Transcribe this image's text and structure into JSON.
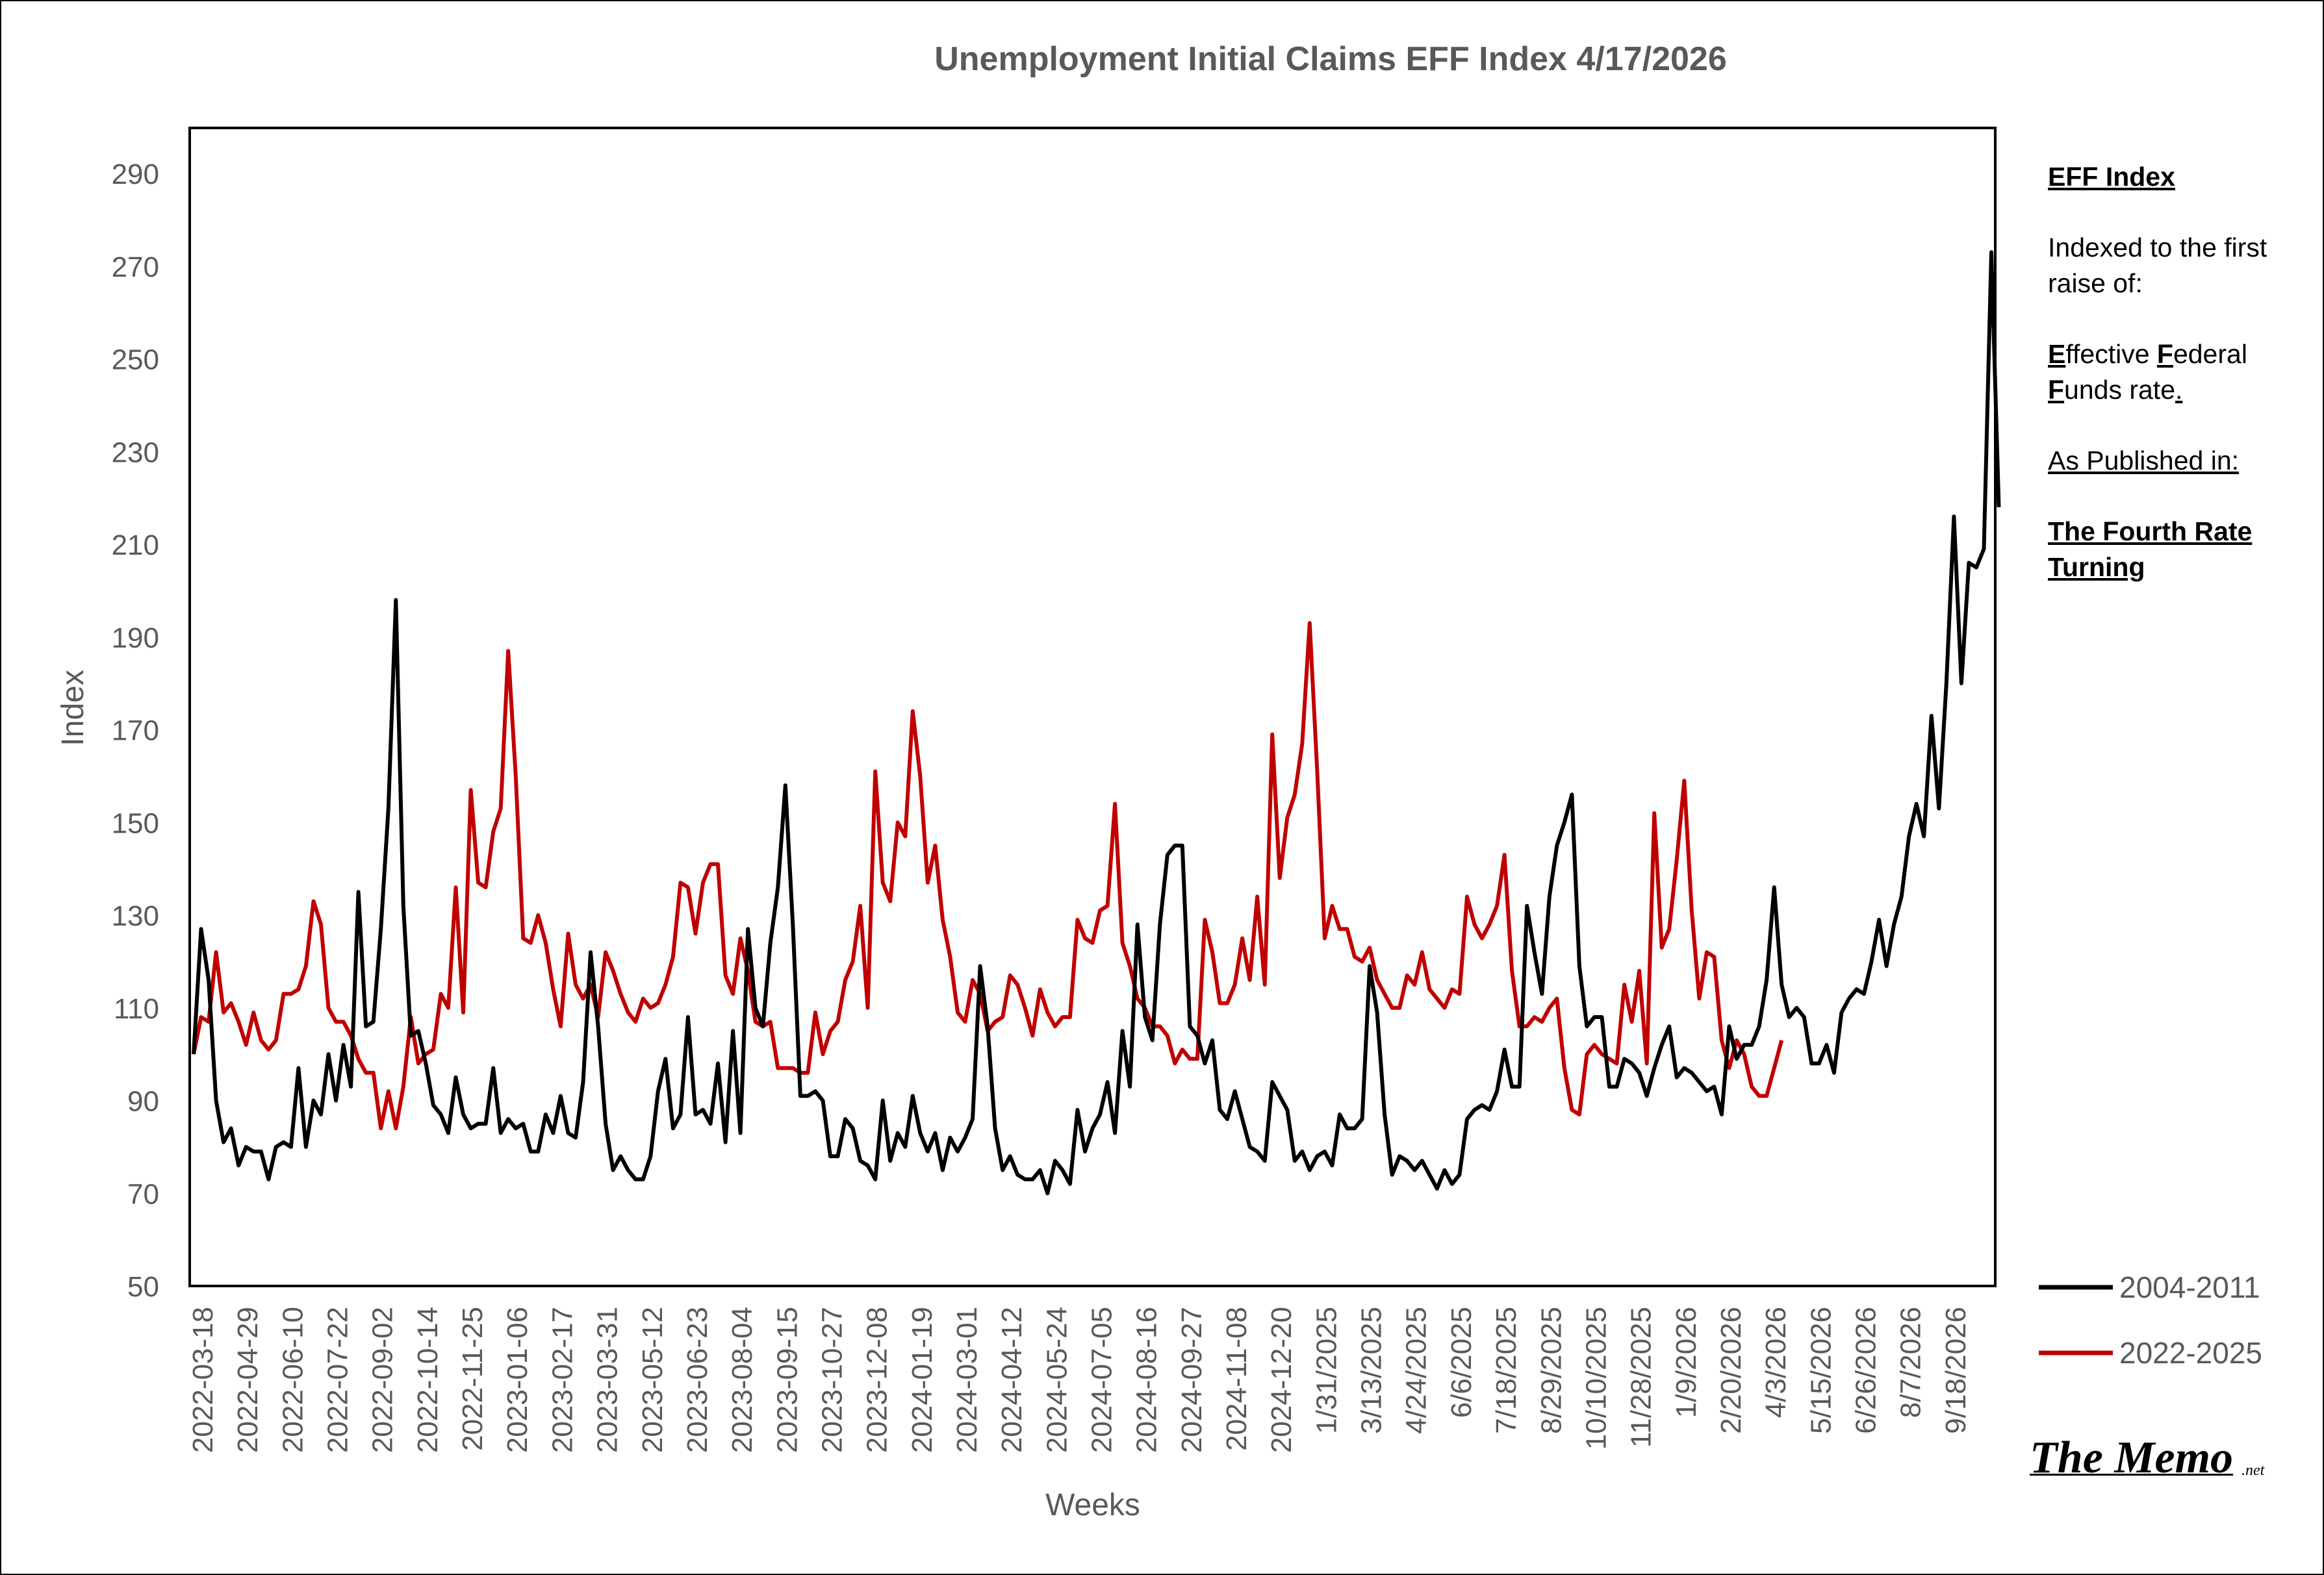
{
  "chart_data": {
    "type": "line",
    "title": "Unemployment Initial Claims EFF Index 4/17/2026",
    "xlabel": "Weeks",
    "ylabel": "Index",
    "ylim": [
      50,
      290
    ],
    "yticks": [
      50,
      70,
      90,
      110,
      130,
      150,
      170,
      190,
      210,
      230,
      250,
      270,
      290
    ],
    "x_tick_labels": [
      "2022-03-18",
      "2022-04-29",
      "2022-06-10",
      "2022-07-22",
      "2022-09-02",
      "2022-10-14",
      "2022-11-25",
      "2023-01-06",
      "2023-02-17",
      "2023-03-31",
      "2023-05-12",
      "2023-06-23",
      "2023-08-04",
      "2023-09-15",
      "2023-10-27",
      "2023-12-08",
      "2024-01-19",
      "2024-03-01",
      "2024-04-12",
      "2024-05-24",
      "2024-07-05",
      "2024-08-16",
      "2024-09-27",
      "2024-11-08",
      "2024-12-20",
      "1/31/2025",
      "3/13/2025",
      "4/24/2025",
      "6/6/2025",
      "7/18/2025",
      "8/29/2025",
      "10/10/2025",
      "11/28/2025",
      "1/9/2026",
      "2/20/2026",
      "4/3/2026",
      "5/15/2026",
      "6/26/2026",
      "8/7/2026",
      "9/18/2026"
    ],
    "weeks_total": 241,
    "grid": false,
    "legend_position": "bottom-right",
    "series": [
      {
        "name": "2004-2011",
        "color": "#000000",
        "values": [
          100,
          127,
          116,
          90,
          81,
          84,
          76,
          80,
          79,
          79,
          73,
          80,
          81,
          80,
          97,
          80,
          90,
          87,
          100,
          90,
          102,
          93,
          135,
          106,
          107,
          127,
          153,
          198,
          132,
          104,
          105,
          98,
          89,
          87,
          83,
          95,
          87,
          84,
          85,
          85,
          97,
          83,
          86,
          84,
          85,
          79,
          79,
          87,
          83,
          91,
          83,
          82,
          94,
          122,
          106,
          85,
          75,
          78,
          75,
          73,
          73,
          78,
          92,
          99,
          84,
          87,
          108,
          87,
          88,
          85,
          98,
          81,
          105,
          83,
          127,
          110,
          106,
          124,
          136,
          158,
          128,
          91,
          91,
          92,
          90,
          78,
          78,
          86,
          84,
          77,
          76,
          73,
          90,
          77,
          83,
          80,
          91,
          83,
          79,
          83,
          75,
          82,
          79,
          82,
          86,
          119,
          106,
          84,
          75,
          78,
          74,
          73,
          73,
          75,
          70,
          77,
          75,
          72,
          88,
          79,
          84,
          87,
          94,
          83,
          105,
          93,
          128,
          108,
          103,
          128,
          143,
          145,
          145,
          106,
          104,
          98,
          103,
          88,
          86,
          92,
          86,
          80,
          79,
          77,
          94,
          91,
          88,
          77,
          79,
          75,
          78,
          79,
          76,
          87,
          84,
          84,
          86,
          119,
          109,
          87,
          74,
          78,
          77,
          75,
          77,
          74,
          71,
          75,
          72,
          74,
          86,
          88,
          89,
          88,
          92,
          101,
          93,
          93,
          132,
          122,
          113,
          134,
          145,
          150,
          156,
          119,
          106,
          108,
          108,
          93,
          93,
          99,
          98,
          96,
          91,
          97,
          102,
          106,
          95,
          97,
          96,
          94,
          92,
          93,
          87,
          106,
          99,
          102,
          102,
          106,
          116,
          136,
          115,
          108,
          110,
          108,
          98,
          98,
          102,
          96,
          109,
          112,
          114,
          113,
          120,
          129,
          119,
          128,
          134,
          147,
          154,
          147,
          173,
          153,
          180,
          216,
          180,
          206,
          205,
          209,
          273,
          218
        ]
      },
      {
        "name": "2022-2025",
        "color": "#c00000",
        "values": [
          100,
          108,
          107,
          122,
          109,
          111,
          107,
          102,
          109,
          103,
          101,
          103,
          113,
          113,
          114,
          119,
          133,
          128,
          110,
          107,
          107,
          104,
          99,
          96,
          96,
          84,
          92,
          84,
          93,
          108,
          98,
          100,
          101,
          113,
          110,
          136,
          109,
          157,
          137,
          136,
          148,
          153,
          187,
          160,
          125,
          124,
          130,
          124,
          114,
          106,
          126,
          115,
          112,
          115,
          108,
          122,
          118,
          113,
          109,
          107,
          112,
          110,
          111,
          115,
          121,
          137,
          136,
          126,
          137,
          141,
          141,
          117,
          113,
          125,
          118,
          107,
          106,
          107,
          97,
          97,
          97,
          96,
          96,
          109,
          100,
          105,
          107,
          116,
          120,
          132,
          110,
          161,
          137,
          133,
          150,
          147,
          174,
          160,
          137,
          145,
          129,
          121,
          109,
          107,
          116,
          113,
          105,
          107,
          108,
          117,
          115,
          110,
          104,
          114,
          109,
          106,
          108,
          108,
          129,
          125,
          124,
          131,
          132,
          154,
          124,
          119,
          112,
          110,
          106,
          106,
          104,
          98,
          101,
          99,
          99,
          129,
          122,
          111,
          111,
          115,
          125,
          116,
          134,
          115,
          169,
          138,
          151,
          156,
          167,
          193,
          161,
          125,
          132,
          127,
          127,
          121,
          120,
          123,
          116,
          113,
          110,
          110,
          117,
          115,
          122,
          114,
          112,
          110,
          114,
          113,
          134,
          128,
          125,
          128,
          132,
          143,
          118,
          106,
          106,
          108,
          107,
          110,
          112,
          97,
          88,
          87,
          100,
          102,
          100,
          99,
          98,
          115,
          107,
          118,
          98,
          152,
          123,
          127,
          142,
          159,
          131,
          112,
          122,
          121,
          103,
          97,
          103,
          100,
          93,
          91,
          91,
          97,
          103
        ]
      }
    ]
  },
  "sidebar": {
    "heading": "EFF Index",
    "line1": "Indexed to the first raise of:",
    "line2_E": "E",
    "line2_rest1": "ffective ",
    "line2_F": "F",
    "line2_rest2": "ederal",
    "line3_F": "F",
    "line3_rest": "unds rate",
    "line3_dot": ".",
    "line4": "As Published in:",
    "line5": "The Fourth Rate Turning"
  },
  "branding": {
    "main": "The Memo",
    "suffix": ".net"
  }
}
